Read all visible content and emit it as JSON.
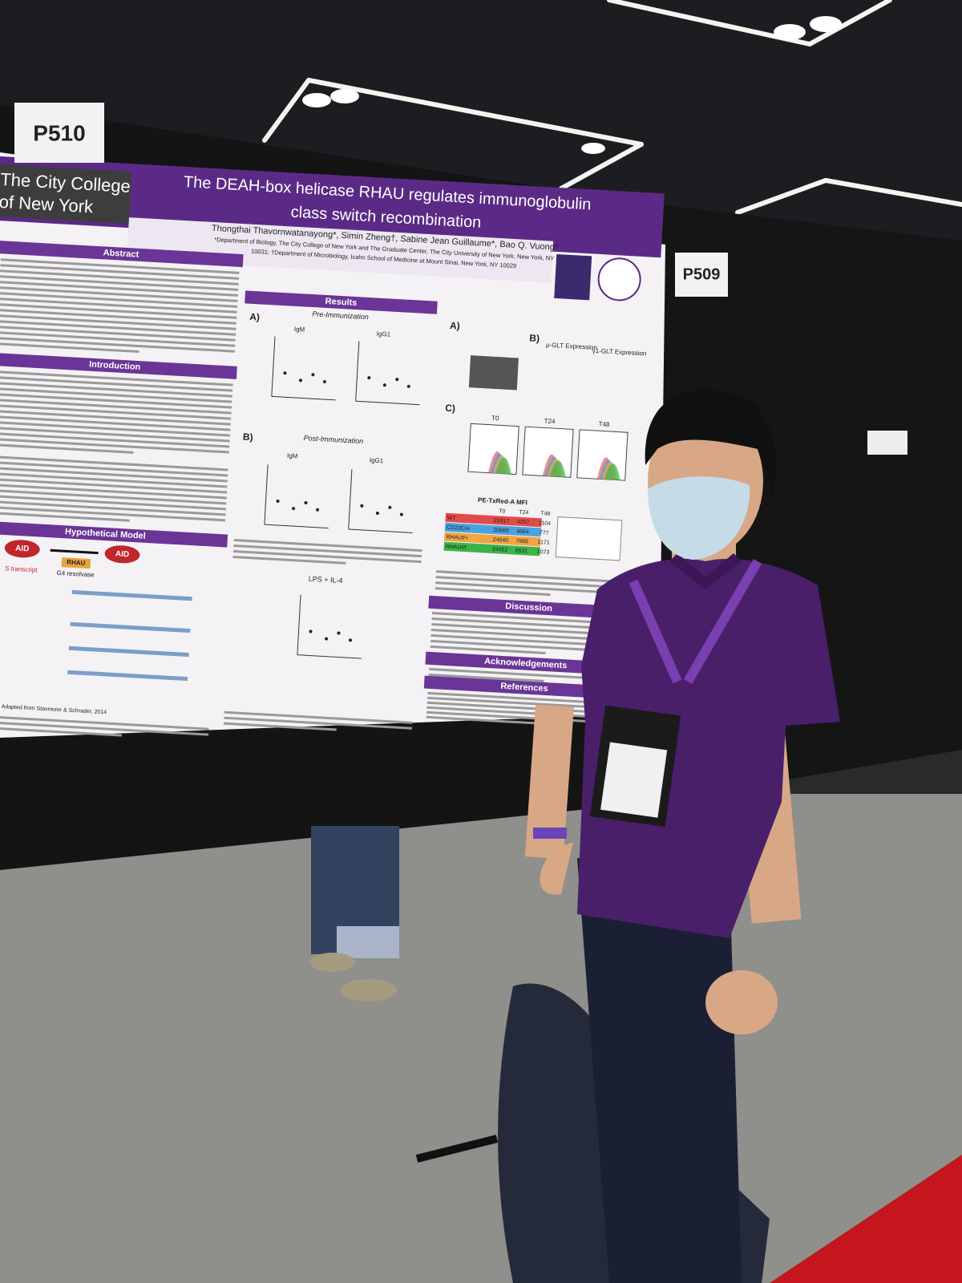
{
  "boards": {
    "left": "P510",
    "right": "P509"
  },
  "poster": {
    "logo": [
      "The City College",
      "of New York"
    ],
    "title": [
      "The DEAH-box helicase RHAU regulates immunoglobulin",
      "class switch recombination"
    ],
    "authors": "Thongthai Thavornwatanayong*, Simin Zheng†, Sabine Jean Guillaume*, Bao Q. Vuong*",
    "affiliation": [
      "*Department of Biology, The City College of New York and The Graduate Center, The City University of New York, New York, NY",
      "10031; †Department of Microbiology, Icahn School of Medicine at Mount Sinai, New York, NY 10029"
    ],
    "sections": {
      "abstract": "Abstract",
      "introduction": "Introduction",
      "model": "Hypothetical Model",
      "results": "Results",
      "discussion": "Discussion",
      "acknowledgements": "Acknowledgements",
      "references": "References"
    },
    "results": {
      "pre": "Pre-Immunization",
      "post": "Post-Immunization",
      "igm": "IgM",
      "igg1": "IgG1",
      "lps": "LPS + IL-4",
      "mu": "μ-GLT Expression",
      "gamma": "γ1-GLT Expression",
      "panels": [
        "A)",
        "B)",
        "C)"
      ],
      "times": [
        "T0",
        "T24",
        "T48"
      ]
    },
    "table": {
      "title": "PE-TxRed-A MFI",
      "header": [
        "T0",
        "T24",
        "T48"
      ],
      "rows": [
        [
          "WT",
          "21817",
          "4257",
          "1104"
        ],
        [
          "CD23Cre",
          "20660",
          "4664",
          "777"
        ],
        [
          "RHAUf/+",
          "24040",
          "7665",
          "1171"
        ],
        [
          "RHAUf/f",
          "24052",
          "6531",
          "1073"
        ]
      ]
    },
    "model": {
      "aid": "AID",
      "rhau": "RHAU",
      "resolvase": "G4 resolvase",
      "transcript": "S transcript"
    },
    "credit": "Adapted from Stavnezer & Schrader, 2014"
  }
}
